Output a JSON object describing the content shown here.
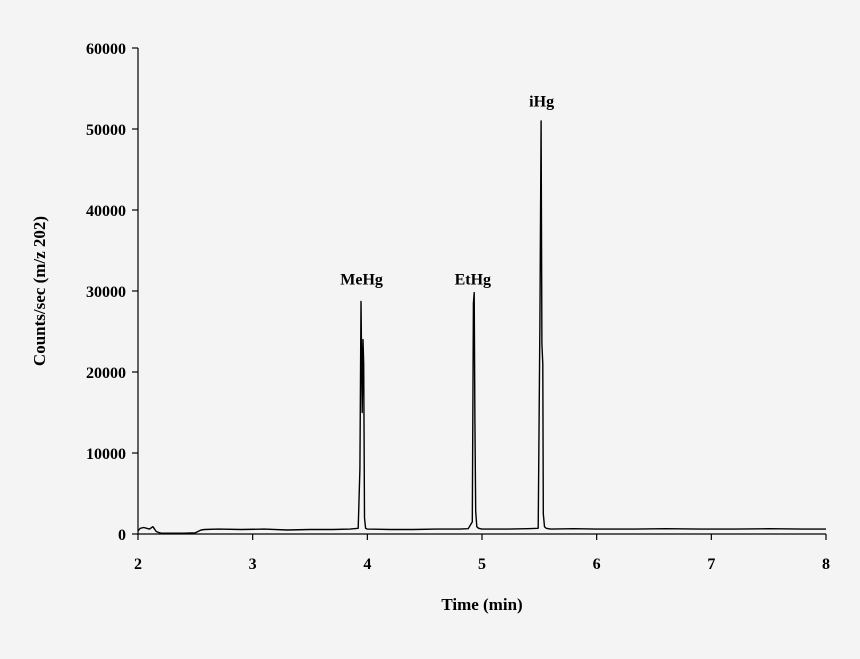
{
  "chart_data": {
    "type": "line",
    "title": "",
    "xlabel": "Time (min)",
    "ylabel": "Counts/sec (m/z 202)",
    "xlim": [
      2,
      8
    ],
    "ylim": [
      0,
      60000
    ],
    "x_ticks": [
      2,
      3,
      4,
      5,
      6,
      7,
      8
    ],
    "y_ticks": [
      0,
      10000,
      20000,
      30000,
      40000,
      50000,
      60000
    ],
    "grid": false,
    "legend": "none",
    "line_color": "#000000",
    "series": [
      {
        "x": [
          2.0,
          2.02,
          2.05,
          2.1,
          2.13,
          2.16,
          2.2,
          2.3,
          2.4,
          2.5,
          2.55,
          2.58,
          2.7,
          2.9,
          3.1,
          3.3,
          3.5,
          3.7,
          3.85,
          3.92,
          3.935,
          3.945,
          3.955,
          3.962,
          3.968,
          3.975,
          3.985,
          4.0,
          4.2,
          4.4,
          4.6,
          4.8,
          4.88,
          4.915,
          4.925,
          4.932,
          4.938,
          4.945,
          4.955,
          4.97,
          5.0,
          5.2,
          5.4,
          5.49,
          5.505,
          5.515,
          5.522,
          5.53,
          5.535,
          5.545,
          5.56,
          5.6,
          5.8,
          6.0,
          6.3,
          6.6,
          6.9,
          7.2,
          7.5,
          7.8,
          8.0
        ],
        "y": [
          400,
          700,
          800,
          600,
          900,
          300,
          100,
          100,
          100,
          150,
          500,
          550,
          600,
          550,
          600,
          500,
          550,
          550,
          600,
          700,
          8000,
          28700,
          15000,
          24000,
          21000,
          2000,
          700,
          600,
          550,
          550,
          600,
          600,
          650,
          1500,
          28500,
          29800,
          14000,
          2800,
          900,
          700,
          600,
          600,
          650,
          700,
          26000,
          51000,
          23500,
          21000,
          2500,
          900,
          700,
          600,
          650,
          600,
          600,
          650,
          600,
          600,
          650,
          600,
          600
        ]
      }
    ],
    "annotations": [
      {
        "text": "MeHg",
        "x": 3.95,
        "y": 30800
      },
      {
        "text": "EtHg",
        "x": 4.92,
        "y": 30800
      },
      {
        "text": "iHg",
        "x": 5.52,
        "y": 52800
      }
    ]
  }
}
